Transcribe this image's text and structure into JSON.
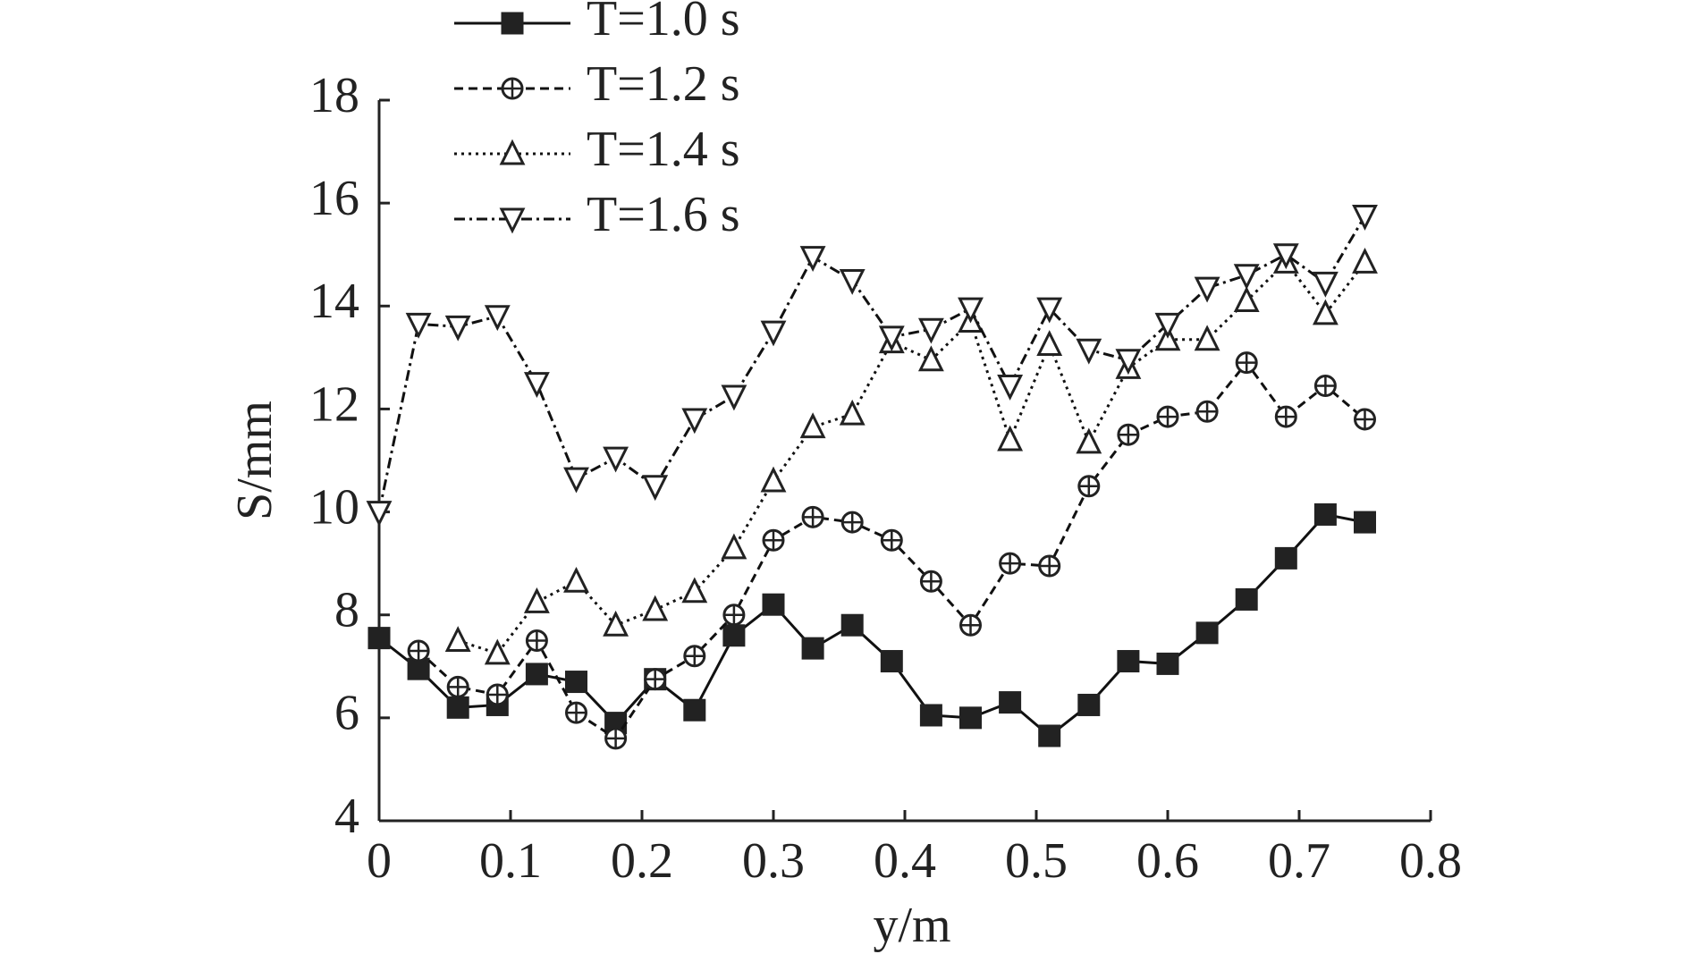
{
  "chart_data": {
    "type": "line",
    "x": [
      0,
      0.03,
      0.06,
      0.09,
      0.12,
      0.15,
      0.18,
      0.21,
      0.24,
      0.27,
      0.3,
      0.33,
      0.36,
      0.39,
      0.42,
      0.45,
      0.48,
      0.51,
      0.54,
      0.57,
      0.6,
      0.63,
      0.66,
      0.69,
      0.72,
      0.75
    ],
    "series": [
      {
        "name": "T=1.0 s",
        "color": "#111111",
        "marker": "square",
        "dash": "solid",
        "values": [
          7.55,
          6.95,
          6.2,
          6.25,
          6.85,
          6.7,
          5.9,
          6.75,
          6.15,
          7.6,
          8.2,
          7.35,
          7.8,
          7.1,
          6.05,
          6.0,
          6.3,
          5.65,
          6.25,
          7.1,
          7.05,
          7.65,
          8.3,
          9.1,
          9.95,
          9.8
        ]
      },
      {
        "name": "T=1.2 s",
        "color": "#111111",
        "marker": "circle-plus",
        "dash": "dashed",
        "values": [
          null,
          7.3,
          6.6,
          6.45,
          7.5,
          6.1,
          5.6,
          6.75,
          7.2,
          8.0,
          9.45,
          9.9,
          9.8,
          9.45,
          8.65,
          7.8,
          9.0,
          8.95,
          10.5,
          11.5,
          11.85,
          11.95,
          12.9,
          11.85,
          12.45,
          11.8
        ]
      },
      {
        "name": "T=1.4 s",
        "color": "#111111",
        "marker": "triangle-up",
        "dash": "dotted",
        "values": [
          null,
          null,
          7.5,
          7.25,
          8.25,
          8.65,
          7.8,
          8.1,
          8.45,
          9.3,
          10.6,
          11.65,
          11.9,
          13.3,
          12.95,
          13.7,
          11.4,
          13.25,
          11.35,
          12.8,
          13.35,
          13.35,
          14.1,
          14.85,
          13.85,
          14.85
        ]
      },
      {
        "name": "T=1.6 s",
        "color": "#111111",
        "marker": "triangle-down",
        "dash": "dashdot",
        "values": [
          10.0,
          13.65,
          13.6,
          13.8,
          12.5,
          10.65,
          11.05,
          10.5,
          11.8,
          12.25,
          13.5,
          14.95,
          14.5,
          13.4,
          13.55,
          13.95,
          12.45,
          13.95,
          13.15,
          12.95,
          13.65,
          14.35,
          14.6,
          15.0,
          14.45,
          15.75
        ]
      }
    ],
    "x_label": "y/m",
    "y_label": "S/mm",
    "xlim": [
      0,
      0.8
    ],
    "xticks": [
      0,
      0.1,
      0.2,
      0.3,
      0.4,
      0.5,
      0.6,
      0.7,
      0.8
    ],
    "ylim": [
      4,
      18
    ],
    "yticks": [
      4,
      6,
      8,
      10,
      12,
      14,
      16,
      18
    ],
    "grid": false,
    "legend": "top-left"
  }
}
